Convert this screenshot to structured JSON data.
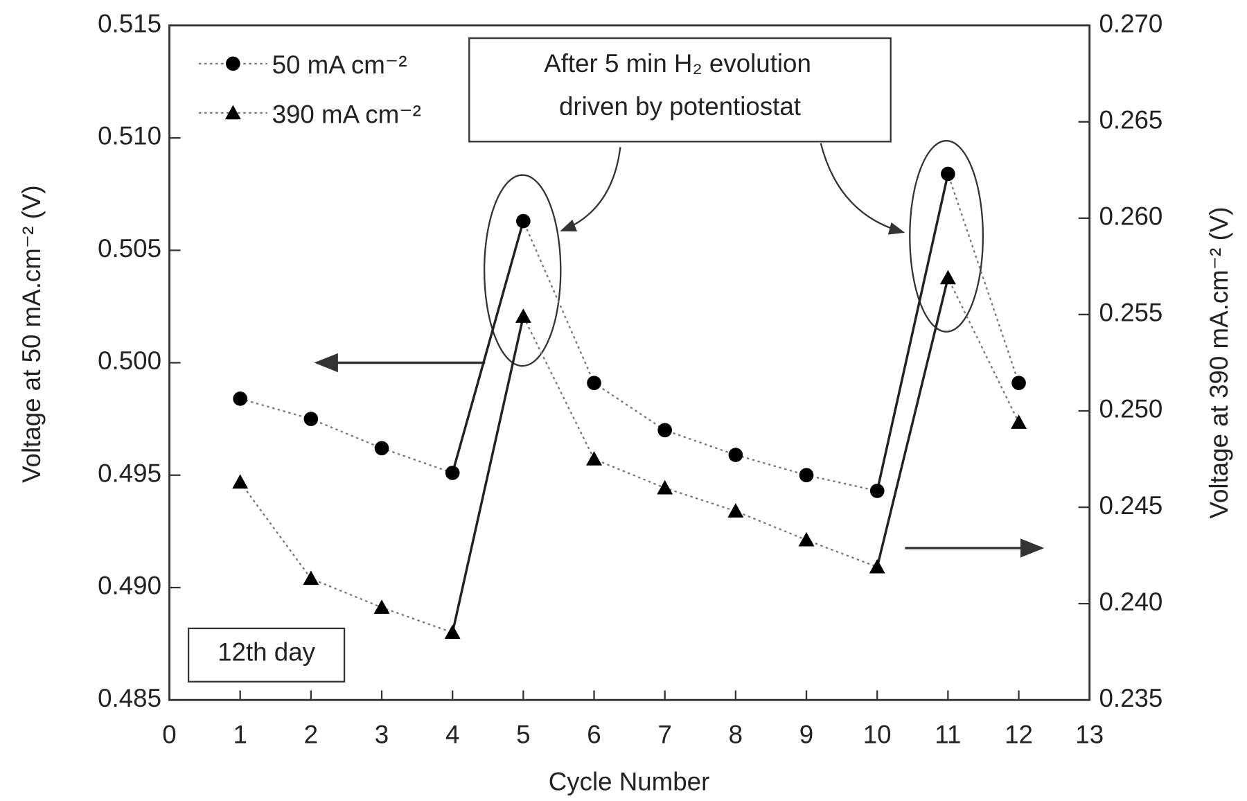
{
  "chart_data": {
    "type": "line",
    "x_label": "Cycle Number",
    "y_label": "Voltage at 50 mA.cm⁻² (V)",
    "y2_label": "Voltage at 390 mA.cm⁻² (V)",
    "annotations": [
      "After 5 min H₂ evolution",
      "driven by potentiostat",
      "12th day"
    ],
    "x": [
      1,
      2,
      3,
      4,
      5,
      6,
      7,
      8,
      9,
      10,
      11,
      12
    ],
    "xlim": [
      0,
      13
    ],
    "xticks": [
      0,
      1,
      2,
      3,
      4,
      5,
      6,
      7,
      8,
      9,
      10,
      11,
      12,
      13
    ],
    "ylim": [
      0.485,
      0.515
    ],
    "yticks": [
      0.485,
      {
        "value": 0.49,
        "label": "0.490"
      },
      0.495,
      {
        "value": 0.5,
        "label": "0.500"
      },
      0.505,
      {
        "value": 0.51,
        "label": "0.510"
      },
      0.515
    ],
    "y2lim": [
      0.235,
      0.27
    ],
    "y2ticks": [
      0.235,
      {
        "value": 0.24,
        "label": "0.240"
      },
      0.245,
      {
        "value": 0.25,
        "label": "0.250"
      },
      0.255,
      {
        "value": 0.26,
        "label": "0.260"
      },
      0.265,
      {
        "value": 0.27,
        "label": "0.270"
      }
    ],
    "series": [
      {
        "name": "50 mA cm⁻²",
        "color": "#000000",
        "marker": "circle",
        "values": [
          0.4984,
          0.4975,
          0.4962,
          0.4951,
          0.5063,
          0.4991,
          0.497,
          0.4959,
          0.495,
          0.4943,
          0.5084,
          0.4991
        ]
      },
      {
        "name": "390 mA cm⁻²",
        "color": "#000000",
        "marker": "triangle",
        "axis": "y2",
        "values": [
          0.2463,
          0.2413,
          0.2398,
          0.2385,
          0.2549,
          0.2475,
          0.246,
          0.2448,
          0.2433,
          0.2419,
          0.2569,
          0.2494
        ]
      }
    ]
  }
}
